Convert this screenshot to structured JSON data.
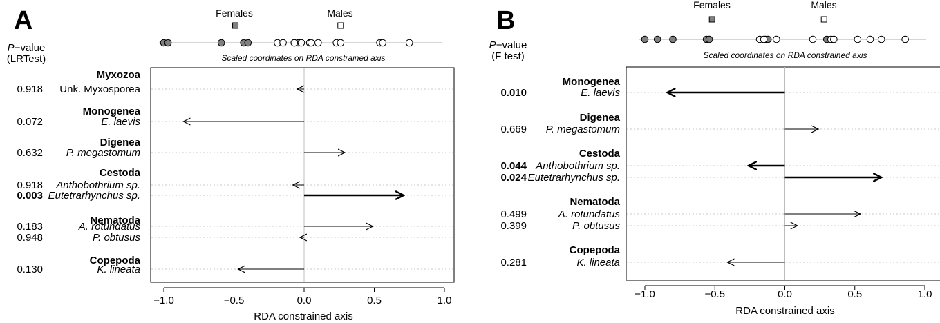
{
  "chart_data": [
    {
      "panel": "A",
      "type": "bar",
      "orientation": "horizontal-arrows",
      "pvalue_header": [
        "P",
        "−value",
        "(LRTest)"
      ],
      "xlabel": "RDA constrained axis",
      "scale_caption": "Scaled coordinates on RDA constrained axis",
      "xlim": [
        -1.0,
        1.0
      ],
      "xticks": [
        "−1.0",
        "−0.5",
        "0.0",
        "0.5",
        "1.0"
      ],
      "legend": {
        "females": "Females",
        "males": "Males",
        "females_pos": -0.49,
        "males_pos": 0.26
      },
      "females_points": [
        -1.0,
        -0.97,
        -0.59,
        -0.43,
        -0.4,
        -0.07,
        -0.04
      ],
      "males_points": [
        -0.19,
        -0.15,
        -0.07,
        -0.02,
        0.04,
        0.05,
        0.1,
        0.23,
        0.26,
        0.54,
        0.56,
        0.75
      ],
      "groups": [
        {
          "name": "Myxozoa",
          "species": [
            {
              "label": "Unk. Myxosporea",
              "italic": false,
              "pvalue": "0.918",
              "sig": false,
              "value": -0.05
            }
          ]
        },
        {
          "name": "Monogenea",
          "species": [
            {
              "label": "E. laevis",
              "italic": true,
              "pvalue": "0.072",
              "sig": false,
              "value": -0.86
            }
          ]
        },
        {
          "name": "Digenea",
          "species": [
            {
              "label": "P. megastomum",
              "italic": true,
              "pvalue": "0.632",
              "sig": false,
              "value": 0.29
            }
          ]
        },
        {
          "name": "Cestoda",
          "species": [
            {
              "label": "Anthobothrium sp.",
              "italic": true,
              "pvalue": "0.918",
              "sig": false,
              "value": -0.08
            },
            {
              "label": "Eutetrarhynchus sp.",
              "italic": true,
              "pvalue": "0.003",
              "sig": true,
              "value": 0.71
            }
          ]
        },
        {
          "name": "Nematoda",
          "species": [
            {
              "label": "A. rotundatus",
              "italic": true,
              "pvalue": "0.183",
              "sig": false,
              "value": 0.49
            },
            {
              "label": "P. obtusus",
              "italic": true,
              "pvalue": "0.948",
              "sig": false,
              "value": -0.03
            }
          ]
        },
        {
          "name": "Copepoda",
          "species": [
            {
              "label": "K. lineata",
              "italic": true,
              "pvalue": "0.130",
              "sig": false,
              "value": -0.47
            }
          ]
        }
      ]
    },
    {
      "panel": "B",
      "type": "bar",
      "orientation": "horizontal-arrows",
      "pvalue_header": [
        "P",
        "−value",
        "(F test)"
      ],
      "xlabel": "RDA constrained axis",
      "scale_caption": "Scaled coordinates on RDA constrained axis",
      "xlim": [
        -1.0,
        1.0
      ],
      "xticks": [
        "−1.0",
        "−0.5",
        "0.0",
        "0.5",
        "1.0"
      ],
      "legend": {
        "females": "Females",
        "males": "Males",
        "females_pos": -0.52,
        "males_pos": 0.28
      },
      "females_points": [
        -1.0,
        -0.91,
        -0.8,
        -0.56,
        -0.54,
        -0.14,
        -0.12,
        0.3
      ],
      "males_points": [
        -0.18,
        -0.15,
        -0.06,
        0.2,
        0.33,
        0.35,
        0.52,
        0.61,
        0.69,
        0.86
      ],
      "groups": [
        {
          "name": "Monogenea",
          "species": [
            {
              "label": "E. laevis",
              "italic": true,
              "pvalue": "0.010",
              "sig": true,
              "value": -0.84
            }
          ]
        },
        {
          "name": "Digenea",
          "species": [
            {
              "label": "P. megastomum",
              "italic": true,
              "pvalue": "0.669",
              "sig": false,
              "value": 0.24
            }
          ]
        },
        {
          "name": "Cestoda",
          "species": [
            {
              "label": "Anthobothrium sp.",
              "italic": true,
              "pvalue": "0.044",
              "sig": true,
              "value": -0.26
            },
            {
              "label": "Eutetrarhynchus sp.",
              "italic": true,
              "pvalue": "0.024",
              "sig": true,
              "value": 0.69
            }
          ]
        },
        {
          "name": "Nematoda",
          "species": [
            {
              "label": "A. rotundatus",
              "italic": true,
              "pvalue": "0.499",
              "sig": false,
              "value": 0.54
            },
            {
              "label": "P. obtusus",
              "italic": true,
              "pvalue": "0.399",
              "sig": false,
              "value": 0.09
            }
          ]
        },
        {
          "name": "Copepoda",
          "species": [
            {
              "label": "K. lineata",
              "italic": true,
              "pvalue": "0.281",
              "sig": false,
              "value": -0.41
            }
          ]
        }
      ]
    }
  ]
}
